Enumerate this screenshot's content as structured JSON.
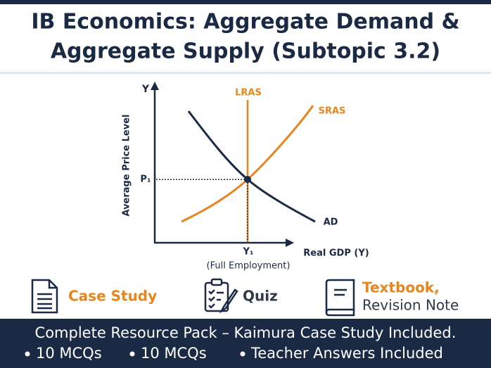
{
  "header": {
    "title_lines": [
      "IB Economics: Aggregate Demand &",
      "Aggregate Supply (Subtopic 3.2)"
    ]
  },
  "diagram": {
    "y_axis_symbol": "Y",
    "y_axis_label": "Average Price Level",
    "x_axis_label": "Real GDP (Y)",
    "lras_label": "LRAS",
    "sras_label": "SRAS",
    "ad_label": "AD",
    "price_label": "P₁",
    "output_label": "Y₁",
    "output_note": "(Full Employment)"
  },
  "features": [
    {
      "label": "Case Study"
    },
    {
      "label": "Quiz"
    },
    {
      "label": "Textbook,",
      "sublabel": "Revision Note"
    }
  ],
  "footer": {
    "headline": "Complete Resource Pack – Kaimura Case Study Included.",
    "items": [
      "10 MCQs",
      "10 MCQs",
      "Teacher Answers Included"
    ]
  }
}
